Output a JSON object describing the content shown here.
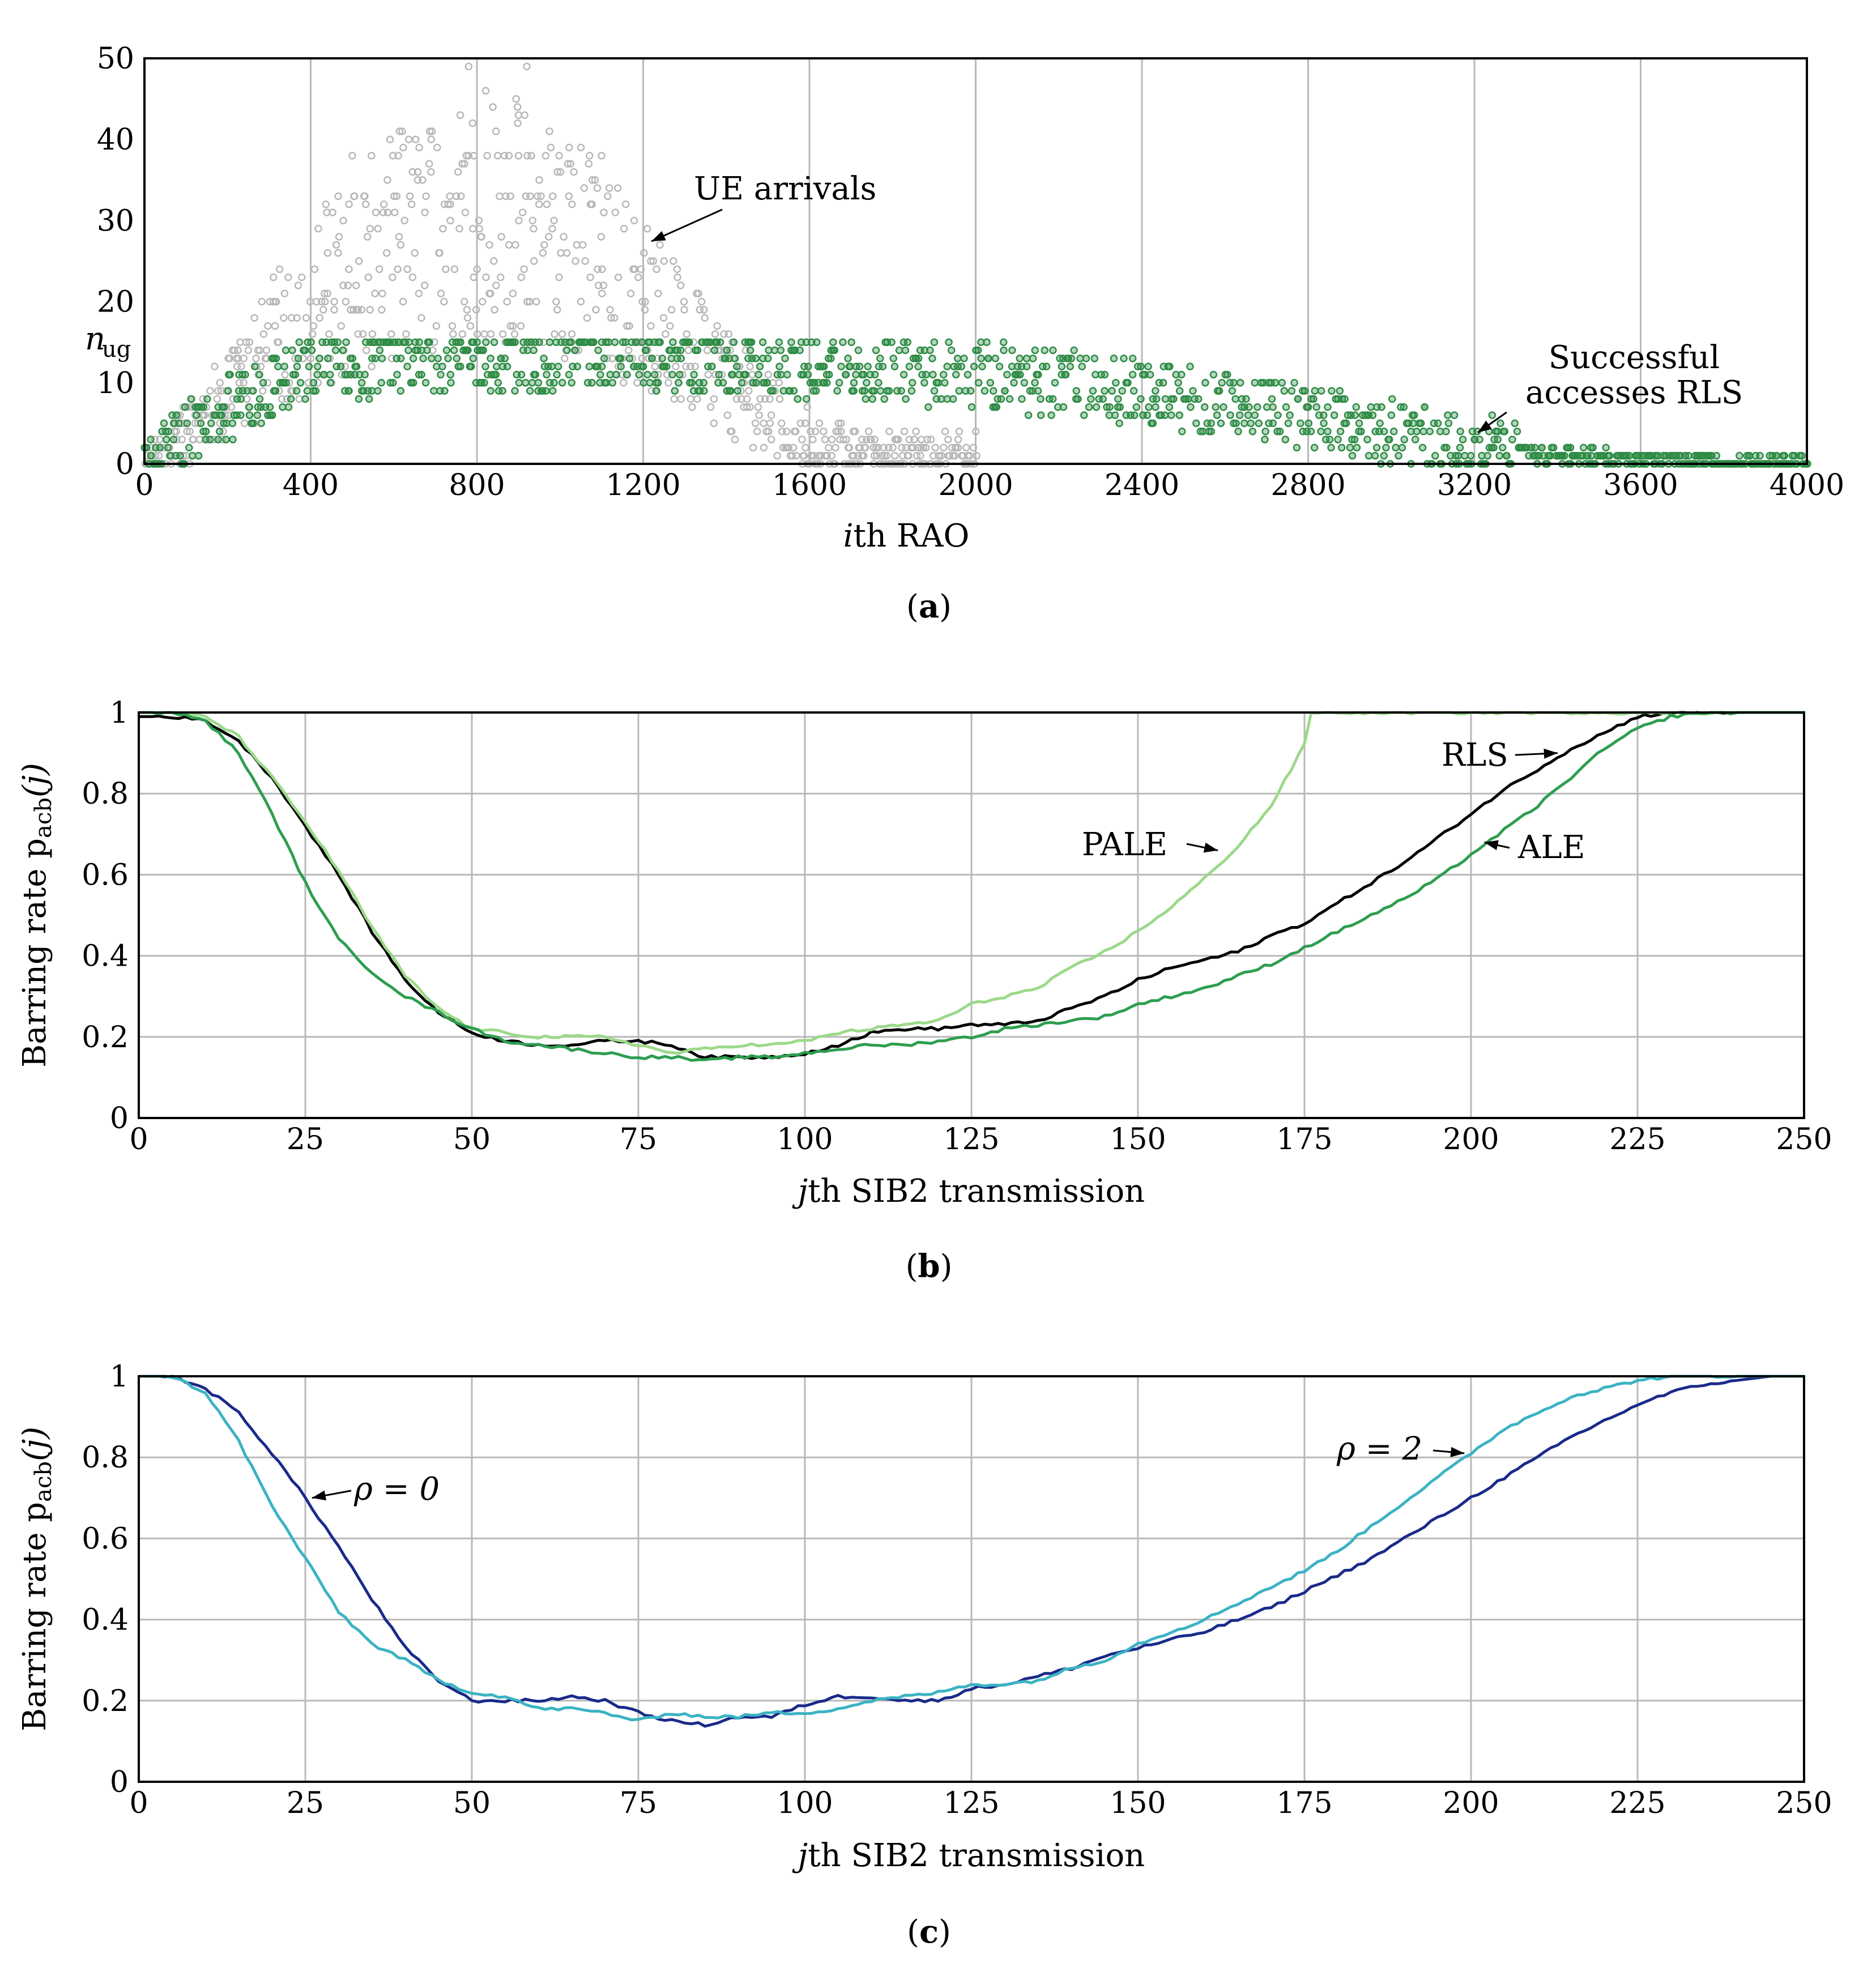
{
  "colors": {
    "arrivals": "#b8b8b8",
    "accesses": "#2e8b45",
    "rls": "#000000",
    "pale": "#9bd98a",
    "ale": "#2e9e4f",
    "rho0": "#1a2a8a",
    "rho2": "#3bb3c3"
  },
  "chart_data": [
    {
      "id": "a",
      "type": "scatter",
      "caption": "a",
      "xlabel_italic": "i",
      "xlabel_rest": "th RAO",
      "xlim": [
        0,
        4000
      ],
      "ylim": [
        0,
        50
      ],
      "x_ticks": [
        "0",
        "400",
        "800",
        "1200",
        "1600",
        "2000",
        "2400",
        "2800",
        "3200",
        "3600",
        "4000"
      ],
      "y_ticks": [
        "0",
        "10",
        "20",
        "30",
        "40",
        "50"
      ],
      "nug_label": "n",
      "nug_sub": "ug",
      "nug_value": 15,
      "series": [
        {
          "name": "UE arrivals",
          "shape": "rise then fall",
          "x": [
            0,
            200,
            400,
            600,
            800,
            1000,
            1200,
            1400,
            1600,
            1800,
            2000
          ],
          "y_center": [
            0,
            8,
            20,
            27,
            31,
            28,
            20,
            10,
            3,
            0,
            0
          ],
          "y_peak": 49
        },
        {
          "name": "Successful accesses RLS",
          "shape": "capped at n_ug",
          "x": [
            0,
            200,
            400,
            800,
            1200,
            1600,
            2000,
            2400,
            2800,
            3200,
            3600,
            4000
          ],
          "y_center": [
            0,
            7,
            12,
            13,
            13,
            12,
            11,
            9,
            6,
            2,
            0.5,
            0
          ]
        }
      ],
      "annotations": [
        {
          "text": "UE arrivals",
          "target": [
            1220,
            28
          ]
        },
        {
          "text": "Successful",
          "text2": "accesses RLS",
          "target": [
            3200,
            4
          ]
        }
      ]
    },
    {
      "id": "b",
      "type": "line",
      "caption": "b",
      "xlabel_italic": "j",
      "xlabel_rest": "th SIB2 transmission",
      "ylabel": "Barring rate p",
      "ylabel_sub": "acb",
      "ylabel_arg": "(j)",
      "xlim": [
        0,
        250
      ],
      "ylim": [
        0,
        1
      ],
      "x_ticks": [
        "0",
        "25",
        "50",
        "75",
        "100",
        "125",
        "150",
        "175",
        "200",
        "225",
        "250"
      ],
      "y_ticks": [
        "0",
        "0.2",
        "0.4",
        "0.6",
        "0.8",
        "1"
      ],
      "series": [
        {
          "name": "RLS",
          "x": [
            0,
            5,
            10,
            15,
            20,
            25,
            30,
            35,
            40,
            45,
            50,
            55,
            60,
            65,
            70,
            75,
            80,
            85,
            90,
            95,
            100,
            105,
            110,
            115,
            120,
            125,
            130,
            135,
            140,
            145,
            150,
            155,
            160,
            165,
            170,
            175,
            180,
            185,
            190,
            195,
            200,
            205,
            210,
            215,
            220,
            225,
            230,
            235,
            250
          ],
          "y": [
            0.99,
            0.99,
            0.98,
            0.93,
            0.84,
            0.72,
            0.6,
            0.46,
            0.34,
            0.26,
            0.21,
            0.19,
            0.18,
            0.18,
            0.19,
            0.19,
            0.18,
            0.15,
            0.15,
            0.15,
            0.16,
            0.18,
            0.21,
            0.22,
            0.22,
            0.23,
            0.23,
            0.24,
            0.27,
            0.3,
            0.34,
            0.37,
            0.39,
            0.41,
            0.45,
            0.48,
            0.53,
            0.58,
            0.63,
            0.69,
            0.75,
            0.81,
            0.86,
            0.91,
            0.95,
            0.99,
            1.0,
            1.0,
            1.0
          ]
        },
        {
          "name": "PALE",
          "x": [
            0,
            5,
            10,
            15,
            20,
            25,
            30,
            35,
            40,
            45,
            50,
            55,
            60,
            65,
            70,
            75,
            80,
            85,
            90,
            95,
            100,
            105,
            110,
            115,
            120,
            125,
            130,
            135,
            140,
            145,
            150,
            155,
            160,
            165,
            170,
            175,
            176,
            200,
            250
          ],
          "y": [
            1.0,
            1.0,
            0.99,
            0.94,
            0.84,
            0.73,
            0.61,
            0.47,
            0.35,
            0.27,
            0.22,
            0.21,
            0.2,
            0.2,
            0.2,
            0.18,
            0.16,
            0.17,
            0.18,
            0.18,
            0.19,
            0.21,
            0.22,
            0.23,
            0.24,
            0.28,
            0.3,
            0.32,
            0.37,
            0.41,
            0.46,
            0.52,
            0.59,
            0.67,
            0.77,
            0.92,
            1.0,
            1.0,
            1.0
          ]
        },
        {
          "name": "ALE",
          "x": [
            0,
            5,
            10,
            15,
            20,
            25,
            30,
            35,
            40,
            45,
            50,
            55,
            60,
            65,
            70,
            75,
            80,
            85,
            90,
            95,
            100,
            105,
            110,
            115,
            120,
            125,
            130,
            135,
            140,
            145,
            150,
            155,
            160,
            165,
            170,
            175,
            180,
            185,
            190,
            195,
            200,
            205,
            210,
            215,
            220,
            225,
            230,
            235,
            250
          ],
          "y": [
            1.0,
            1.0,
            0.98,
            0.9,
            0.75,
            0.58,
            0.44,
            0.36,
            0.3,
            0.26,
            0.22,
            0.19,
            0.18,
            0.17,
            0.16,
            0.15,
            0.15,
            0.14,
            0.15,
            0.15,
            0.16,
            0.17,
            0.18,
            0.18,
            0.19,
            0.2,
            0.22,
            0.23,
            0.24,
            0.25,
            0.28,
            0.3,
            0.32,
            0.35,
            0.38,
            0.42,
            0.46,
            0.5,
            0.54,
            0.59,
            0.65,
            0.71,
            0.77,
            0.84,
            0.91,
            0.96,
            0.99,
            1.0,
            1.0
          ]
        }
      ],
      "annotations": [
        {
          "text": "RLS",
          "series": "RLS",
          "target": [
            213,
            0.9
          ]
        },
        {
          "text": "PALE",
          "series": "PALE",
          "target": [
            162,
            0.66
          ]
        },
        {
          "text": "ALE",
          "series": "ALE",
          "target": [
            202,
            0.68
          ]
        }
      ]
    },
    {
      "id": "c",
      "type": "line",
      "caption": "c",
      "xlabel_italic": "j",
      "xlabel_rest": "th SIB2 transmission",
      "ylabel": "Barring rate p",
      "ylabel_sub": "acb",
      "ylabel_arg": "(j)",
      "xlim": [
        0,
        250
      ],
      "ylim": [
        0,
        1
      ],
      "x_ticks": [
        "0",
        "25",
        "50",
        "75",
        "100",
        "125",
        "150",
        "175",
        "200",
        "225",
        "250"
      ],
      "y_ticks": [
        "0",
        "0.2",
        "0.4",
        "0.6",
        "0.8",
        "1"
      ],
      "series": [
        {
          "name": "ρ = 0",
          "x": [
            0,
            5,
            10,
            15,
            20,
            25,
            30,
            35,
            40,
            45,
            50,
            55,
            60,
            65,
            70,
            75,
            80,
            85,
            90,
            95,
            100,
            105,
            110,
            115,
            120,
            125,
            130,
            135,
            140,
            145,
            150,
            155,
            160,
            165,
            170,
            175,
            180,
            185,
            190,
            195,
            200,
            205,
            210,
            215,
            220,
            225,
            230,
            235,
            240,
            245,
            250
          ],
          "y": [
            1.0,
            1.0,
            0.97,
            0.91,
            0.81,
            0.7,
            0.58,
            0.45,
            0.33,
            0.25,
            0.2,
            0.2,
            0.2,
            0.21,
            0.2,
            0.17,
            0.15,
            0.14,
            0.16,
            0.16,
            0.19,
            0.21,
            0.21,
            0.2,
            0.2,
            0.23,
            0.24,
            0.26,
            0.28,
            0.31,
            0.33,
            0.35,
            0.37,
            0.4,
            0.43,
            0.47,
            0.51,
            0.55,
            0.6,
            0.65,
            0.7,
            0.75,
            0.8,
            0.85,
            0.89,
            0.93,
            0.96,
            0.98,
            0.99,
            1.0,
            1.0
          ]
        },
        {
          "name": "ρ = 2",
          "x": [
            0,
            5,
            10,
            15,
            20,
            25,
            30,
            35,
            40,
            45,
            50,
            55,
            60,
            65,
            70,
            75,
            80,
            85,
            90,
            95,
            100,
            105,
            110,
            115,
            120,
            125,
            130,
            135,
            140,
            145,
            150,
            155,
            160,
            165,
            170,
            175,
            180,
            185,
            190,
            195,
            200,
            205,
            210,
            215,
            220,
            225,
            230,
            235,
            240,
            245,
            250
          ],
          "y": [
            1.0,
            1.0,
            0.96,
            0.84,
            0.68,
            0.55,
            0.42,
            0.34,
            0.3,
            0.25,
            0.22,
            0.21,
            0.18,
            0.18,
            0.17,
            0.15,
            0.17,
            0.16,
            0.16,
            0.17,
            0.17,
            0.18,
            0.2,
            0.21,
            0.22,
            0.24,
            0.24,
            0.25,
            0.28,
            0.3,
            0.34,
            0.37,
            0.4,
            0.44,
            0.48,
            0.52,
            0.57,
            0.63,
            0.69,
            0.75,
            0.81,
            0.87,
            0.91,
            0.95,
            0.97,
            0.99,
            1.0,
            1.0,
            1.0,
            1.0,
            1.0
          ]
        }
      ],
      "annotations": [
        {
          "text": "ρ = 0",
          "series": "ρ = 0",
          "target": [
            26,
            0.7
          ]
        },
        {
          "text": "ρ = 2",
          "series": "ρ = 2",
          "target": [
            199,
            0.81
          ]
        }
      ]
    }
  ]
}
